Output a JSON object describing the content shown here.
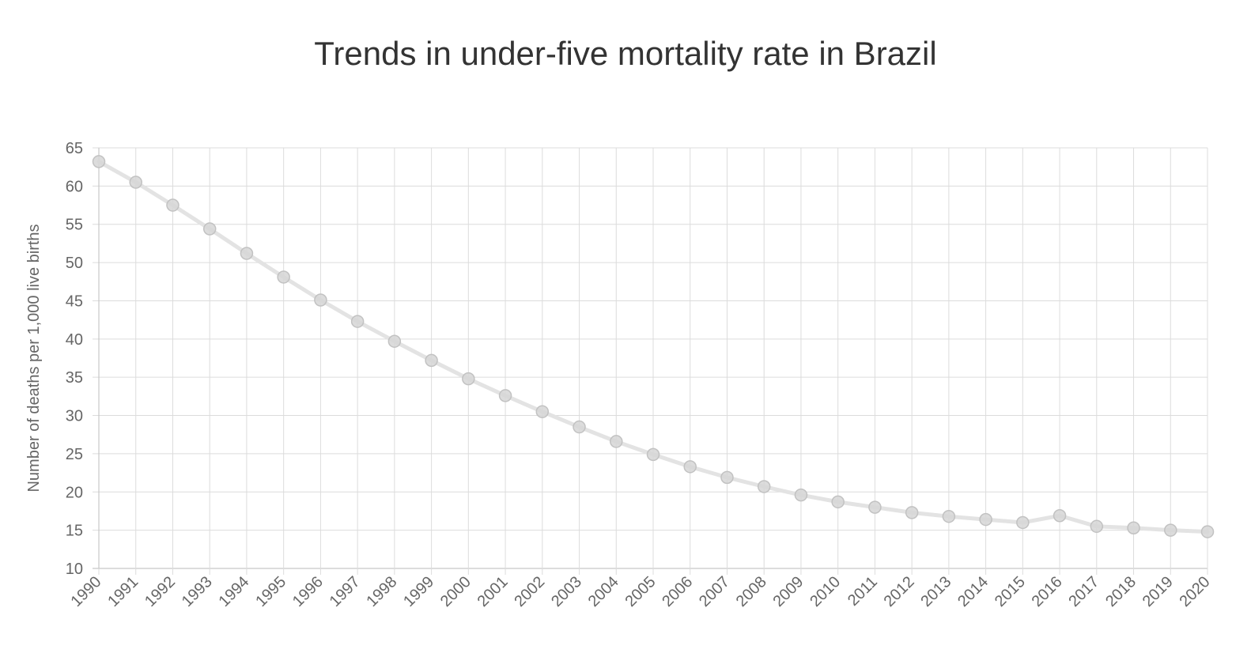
{
  "chart_data": {
    "type": "line",
    "title": "Trends in under-five mortality rate in Brazil",
    "xlabel": "",
    "ylabel": "Number of deaths per 1,000 live births",
    "ylim": [
      10,
      65
    ],
    "yticks": [
      10,
      15,
      20,
      25,
      30,
      35,
      40,
      45,
      50,
      55,
      60,
      65
    ],
    "grid": true,
    "legend": "none",
    "categories": [
      "1990",
      "1991",
      "1992",
      "1993",
      "1994",
      "1995",
      "1996",
      "1997",
      "1998",
      "1999",
      "2000",
      "2001",
      "2002",
      "2003",
      "2004",
      "2005",
      "2006",
      "2007",
      "2008",
      "2009",
      "2010",
      "2011",
      "2012",
      "2013",
      "2014",
      "2015",
      "2016",
      "2017",
      "2018",
      "2019",
      "2020"
    ],
    "series": [
      {
        "values": [
          63.2,
          60.5,
          57.5,
          54.4,
          51.2,
          48.1,
          45.1,
          42.3,
          39.7,
          37.2,
          34.8,
          32.6,
          30.5,
          28.5,
          26.6,
          24.9,
          23.3,
          21.9,
          20.7,
          19.6,
          18.7,
          18.0,
          17.3,
          16.8,
          16.4,
          16.0,
          16.9,
          15.5,
          15.3,
          15.0,
          14.8
        ],
        "color": "#e3e3e3",
        "marker_color": "#d6d6d6"
      }
    ]
  }
}
